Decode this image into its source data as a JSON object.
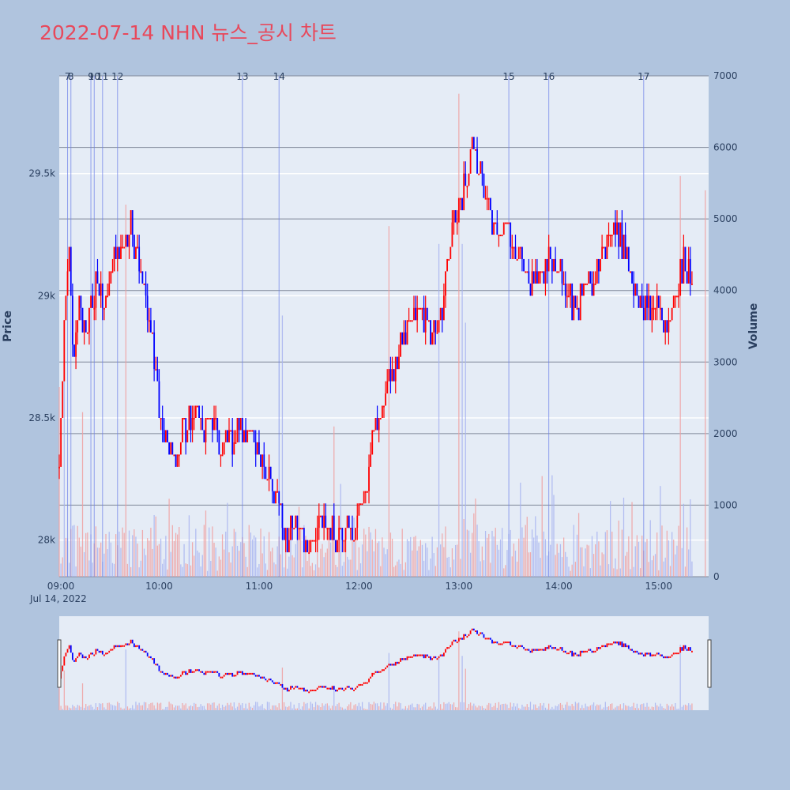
{
  "title": "2022-07-14 NHN 뉴스_공시 차트",
  "colors": {
    "up": "#ff0000",
    "down": "#0000ff",
    "plot_bg": "#e5ecf6",
    "page_bg": "#b0c4de",
    "event_line": "#6f83e8"
  },
  "chart_data": {
    "type": "candlestick",
    "x_axis": {
      "type": "time",
      "range_start": "09:00",
      "range_end": "15:30",
      "tick_labels": [
        "09:00",
        "10:00",
        "11:00",
        "12:00",
        "13:00",
        "14:00",
        "15:00"
      ],
      "date_label": "Jul 14, 2022"
    },
    "y_price": {
      "title": "Price",
      "range": [
        27850,
        29900
      ],
      "tick_values": [
        28000,
        28500,
        29000,
        29500
      ],
      "tick_labels": [
        "28k",
        "28.5k",
        "29k",
        "29.5k"
      ]
    },
    "y_volume": {
      "title": "Volume",
      "range": [
        0,
        7000
      ],
      "tick_values": [
        0,
        1000,
        2000,
        3000,
        4000,
        5000,
        6000,
        7000
      ],
      "tick_labels": [
        "0",
        "1000",
        "2000",
        "3000",
        "4000",
        "5000",
        "6000",
        "7000"
      ]
    },
    "price_path": [
      [
        "09:00",
        28300
      ],
      [
        "09:03",
        28850
      ],
      [
        "09:06",
        29200
      ],
      [
        "09:08",
        28750
      ],
      [
        "09:12",
        28950
      ],
      [
        "09:17",
        28850
      ],
      [
        "09:22",
        29050
      ],
      [
        "09:28",
        28950
      ],
      [
        "09:33",
        29200
      ],
      [
        "09:38",
        29150
      ],
      [
        "09:43",
        29300
      ],
      [
        "09:48",
        29100
      ],
      [
        "09:53",
        28950
      ],
      [
        "09:56",
        28800
      ],
      [
        "10:00",
        28550
      ],
      [
        "10:05",
        28400
      ],
      [
        "10:10",
        28350
      ],
      [
        "10:15",
        28450
      ],
      [
        "10:20",
        28500
      ],
      [
        "10:30",
        28450
      ],
      [
        "10:40",
        28400
      ],
      [
        "10:50",
        28450
      ],
      [
        "10:58",
        28400
      ],
      [
        "11:05",
        28250
      ],
      [
        "11:12",
        28200
      ],
      [
        "11:15",
        28000
      ],
      [
        "11:22",
        28050
      ],
      [
        "11:30",
        28000
      ],
      [
        "11:40",
        28050
      ],
      [
        "11:48",
        28000
      ],
      [
        "11:55",
        28050
      ],
      [
        "12:00",
        28100
      ],
      [
        "12:05",
        28250
      ],
      [
        "12:10",
        28500
      ],
      [
        "12:15",
        28600
      ],
      [
        "12:20",
        28700
      ],
      [
        "12:25",
        28800
      ],
      [
        "12:30",
        28900
      ],
      [
        "12:35",
        28950
      ],
      [
        "12:40",
        28900
      ],
      [
        "12:45",
        28850
      ],
      [
        "12:50",
        28950
      ],
      [
        "12:55",
        29200
      ],
      [
        "13:00",
        29400
      ],
      [
        "13:05",
        29450
      ],
      [
        "13:07",
        29600
      ],
      [
        "13:12",
        29550
      ],
      [
        "13:18",
        29350
      ],
      [
        "13:23",
        29250
      ],
      [
        "13:30",
        29300
      ],
      [
        "13:35",
        29150
      ],
      [
        "13:40",
        29100
      ],
      [
        "13:45",
        29050
      ],
      [
        "13:50",
        29100
      ],
      [
        "13:55",
        29150
      ],
      [
        "14:00",
        29100
      ],
      [
        "14:05",
        29000
      ],
      [
        "14:10",
        28950
      ],
      [
        "14:15",
        29000
      ],
      [
        "14:20",
        29050
      ],
      [
        "14:25",
        29150
      ],
      [
        "14:30",
        29250
      ],
      [
        "14:35",
        29300
      ],
      [
        "14:40",
        29150
      ],
      [
        "14:45",
        29050
      ],
      [
        "14:50",
        28950
      ],
      [
        "14:55",
        28950
      ],
      [
        "15:00",
        28950
      ],
      [
        "15:05",
        28900
      ],
      [
        "15:10",
        29000
      ],
      [
        "15:15",
        29150
      ],
      [
        "15:20",
        29050
      ]
    ],
    "volume_spikes": [
      [
        "09:00",
        2650
      ],
      [
        "09:03",
        3400
      ],
      [
        "09:14",
        2300
      ],
      [
        "09:40",
        5200
      ],
      [
        "11:14",
        3650
      ],
      [
        "11:45",
        2100
      ],
      [
        "12:18",
        4900
      ],
      [
        "12:48",
        4650
      ],
      [
        "13:00",
        6750
      ],
      [
        "13:02",
        4650
      ],
      [
        "13:04",
        3550
      ],
      [
        "15:13",
        5600
      ],
      [
        "15:28",
        5400
      ]
    ],
    "events": [
      {
        "label": "7",
        "time": "09:05"
      },
      {
        "label": "8",
        "time": "09:07"
      },
      {
        "label": "9",
        "time": "09:19"
      },
      {
        "label": "10",
        "time": "09:21"
      },
      {
        "label": "11",
        "time": "09:26"
      },
      {
        "label": "12",
        "time": "09:35"
      },
      {
        "label": "13",
        "time": "10:50"
      },
      {
        "label": "14",
        "time": "11:12"
      },
      {
        "label": "15",
        "time": "13:30"
      },
      {
        "label": "16",
        "time": "13:54"
      },
      {
        "label": "17",
        "time": "14:51"
      }
    ]
  }
}
